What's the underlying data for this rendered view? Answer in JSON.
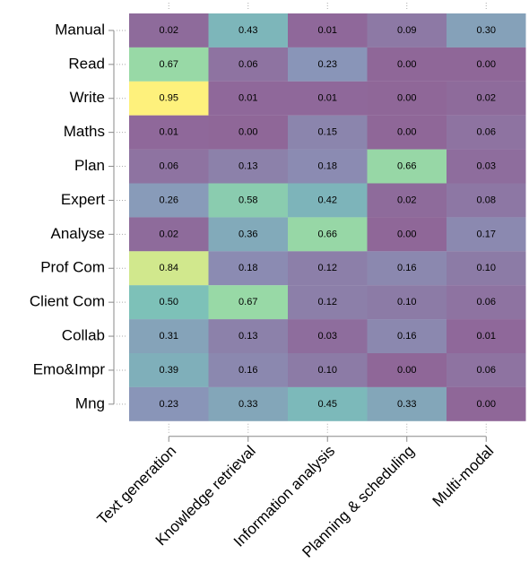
{
  "chart_data": {
    "type": "heatmap",
    "rows": [
      "Manual",
      "Read",
      "Write",
      "Maths",
      "Plan",
      "Expert",
      "Analyse",
      "Prof Com",
      "Client Com",
      "Collab",
      "Emo&Impr",
      "Mng"
    ],
    "columns": [
      "Text generation",
      "Knowledge retrieval",
      "Information analysis",
      "Planning & scheduling",
      "Multi-modal"
    ],
    "values": [
      [
        0.02,
        0.43,
        0.01,
        0.09,
        0.3
      ],
      [
        0.67,
        0.06,
        0.23,
        0,
        0
      ],
      [
        0.95,
        0.01,
        0.01,
        0,
        0.02
      ],
      [
        0.01,
        0,
        0.15,
        0,
        0.06
      ],
      [
        0.06,
        0.13,
        0.18,
        0.66,
        0.03
      ],
      [
        0.26,
        0.58,
        0.42,
        0.02,
        0.08
      ],
      [
        0.02,
        0.36,
        0.66,
        0,
        0.17
      ],
      [
        0.84,
        0.18,
        0.12,
        0.16,
        0.1
      ],
      [
        0.5,
        0.67,
        0.12,
        0.1,
        0.06
      ],
      [
        0.31,
        0.13,
        0.03,
        0.16,
        0.01
      ],
      [
        0.39,
        0.16,
        0.1,
        0,
        0.06
      ],
      [
        0.23,
        0.33,
        0.45,
        0.33,
        0
      ]
    ],
    "value_labels": [
      [
        "0.02",
        "0.43",
        "0.01",
        "0.09",
        "0.30"
      ],
      [
        "0.67",
        "0.06",
        "0.23",
        "0.00",
        "0.00"
      ],
      [
        "0.95",
        "0.01",
        "0.01",
        "0.00",
        "0.02"
      ],
      [
        "0.01",
        "0.00",
        "0.15",
        "0.00",
        "0.06"
      ],
      [
        "0.06",
        "0.13",
        "0.18",
        "0.66",
        "0.03"
      ],
      [
        "0.26",
        "0.58",
        "0.42",
        "0.02",
        "0.08"
      ],
      [
        "0.02",
        "0.36",
        "0.66",
        "0.00",
        "0.17"
      ],
      [
        "0.84",
        "0.18",
        "0.12",
        "0.16",
        "0.10"
      ],
      [
        "0.50",
        "0.67",
        "0.12",
        "0.10",
        "0.06"
      ],
      [
        "0.31",
        "0.13",
        "0.03",
        "0.16",
        "0.01"
      ],
      [
        "0.39",
        "0.16",
        "0.10",
        "0.00",
        "0.06"
      ],
      [
        "0.23",
        "0.33",
        "0.45",
        "0.33",
        "0.00"
      ]
    ],
    "colormap": "viridis",
    "zlim": [
      0,
      0.95
    ]
  }
}
